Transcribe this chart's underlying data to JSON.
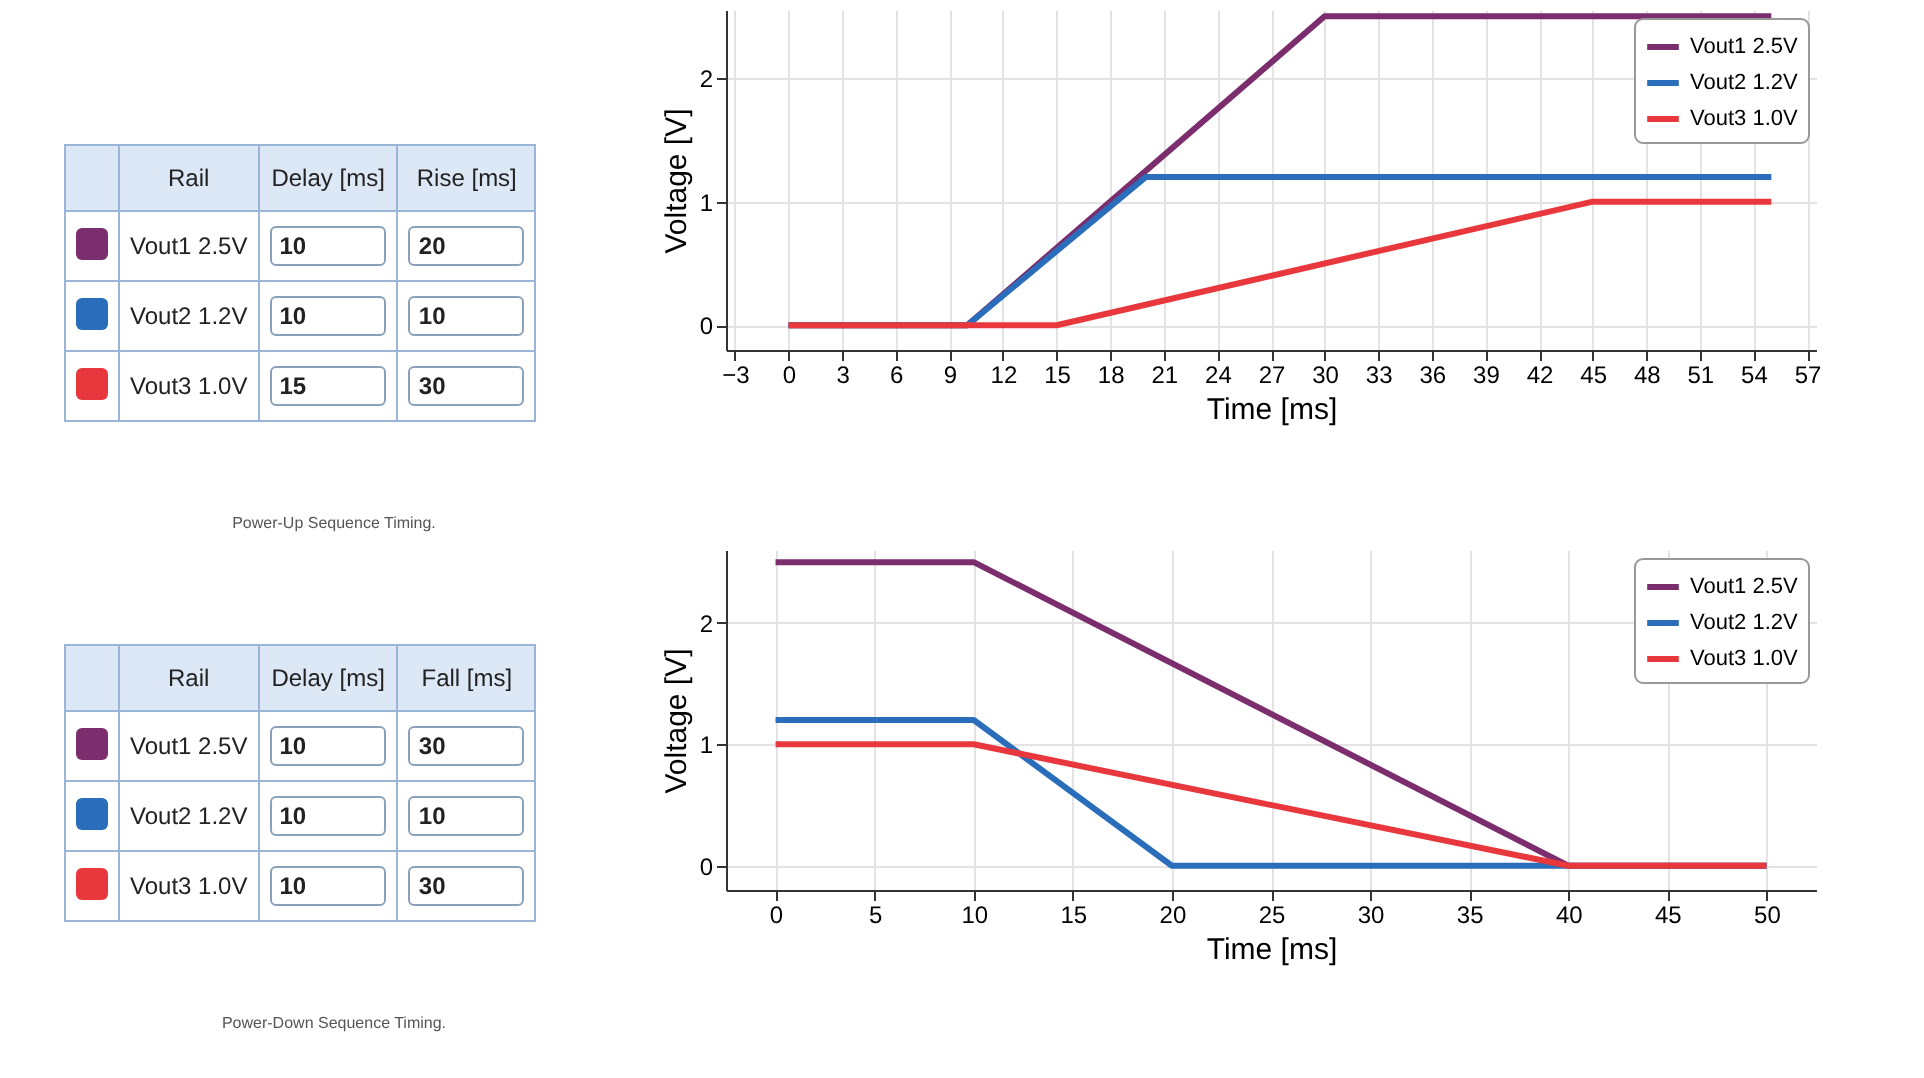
{
  "chart_data": [
    {
      "type": "other",
      "annotations": [
        "Rail",
        "Delay [ms]",
        "Rise [ms]",
        "Vout1 2.5V",
        "10",
        "20",
        "Vout2 1.2V",
        "10",
        "10",
        "Vout3 1.0V",
        "15",
        "30",
        "Power-Up Sequence Timing."
      ],
      "colors": [
        "#7b2d6e",
        "#2a6ebb",
        "#e8383d"
      ]
    },
    {
      "type": "line",
      "xlabel": "Time [ms]",
      "ylabel": "Voltage [V]",
      "xlim": [
        -3.5,
        57.5
      ],
      "ylim": [
        -0.2,
        2.55
      ],
      "xticks": [
        -3,
        0,
        3,
        6,
        9,
        12,
        15,
        18,
        21,
        24,
        27,
        30,
        33,
        36,
        39,
        42,
        45,
        48,
        51,
        54,
        57
      ],
      "yticks": [
        0,
        1,
        2
      ],
      "grid": true,
      "legend": "top right",
      "series": [
        {
          "name": "Vout1 2.5V",
          "color": "#7b2d6e",
          "x": [
            0,
            10,
            30,
            55
          ],
          "values": [
            0,
            0,
            2.5,
            2.5
          ]
        },
        {
          "name": "Vout2 1.2V",
          "color": "#2a6ebb",
          "x": [
            0,
            10,
            20,
            55
          ],
          "values": [
            0,
            0,
            1.2,
            1.2
          ]
        },
        {
          "name": "Vout3 1.0V",
          "color": "#e8383d",
          "x": [
            0,
            15,
            45,
            55
          ],
          "values": [
            0,
            0,
            1,
            1
          ]
        }
      ]
    },
    {
      "type": "other",
      "annotations": [
        "Rail",
        "Delay [ms]",
        "Fall [ms]",
        "Vout1 2.5V",
        "10",
        "30",
        "Vout2 1.2V",
        "10",
        "10",
        "Vout3 1.0V",
        "10",
        "30",
        "Power-Down Sequence Timing."
      ],
      "colors": [
        "#7b2d6e",
        "#2a6ebb",
        "#e8383d"
      ]
    },
    {
      "type": "line",
      "xlabel": "Time [ms]",
      "ylabel": "Voltage [V]",
      "xlim": [
        -2.5,
        52.5
      ],
      "ylim": [
        -0.2,
        2.6
      ],
      "xticks": [
        0,
        5,
        10,
        15,
        20,
        25,
        30,
        35,
        40,
        45,
        50
      ],
      "yticks": [
        0,
        1,
        2
      ],
      "grid": true,
      "legend": "top right",
      "series": [
        {
          "name": "Vout1 2.5V",
          "color": "#7b2d6e",
          "x": [
            0,
            10,
            40,
            50
          ],
          "values": [
            2.5,
            2.5,
            0,
            0
          ]
        },
        {
          "name": "Vout2 1.2V",
          "color": "#2a6ebb",
          "x": [
            0,
            10,
            20,
            50
          ],
          "values": [
            1.2,
            1.2,
            0,
            0
          ]
        },
        {
          "name": "Vout3 1.0V",
          "color": "#e8383d",
          "x": [
            0,
            10,
            40,
            50
          ],
          "values": [
            1,
            1,
            0,
            0
          ]
        }
      ]
    }
  ]
}
